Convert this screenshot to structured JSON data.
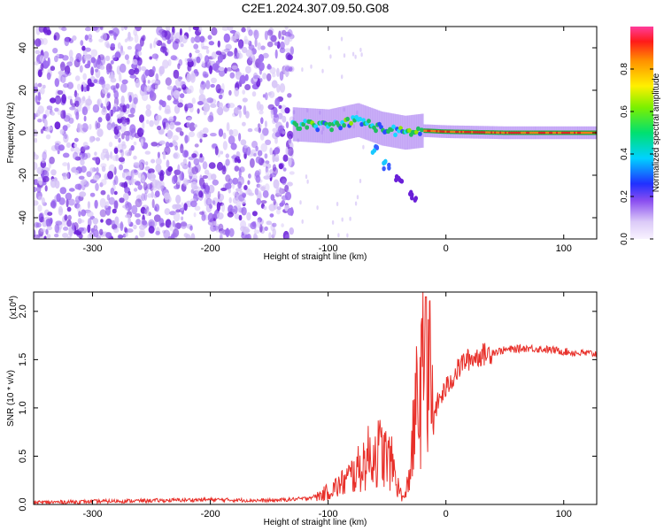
{
  "title": "C2E1.2024.307.09.50.G08",
  "colors": {
    "line": "#e8302a",
    "speckle_dark": "#6a1fd8",
    "speckle_mid": "#9d6cf0",
    "speckle_light": "#d6c4f7"
  },
  "chart_data": [
    {
      "type": "heatmap",
      "name": "spectrogram",
      "xlabel": "Height of straight line (km)",
      "ylabel": "Frequency (Hz)",
      "xlim": [
        -350,
        128
      ],
      "ylim": [
        -50,
        50
      ],
      "x_ticks": [
        -300,
        -200,
        -100,
        0,
        100
      ],
      "y_ticks": [
        40,
        20,
        0,
        -20,
        -40
      ],
      "noise_region_x": [
        -350,
        -130
      ],
      "signal_track": [
        {
          "x": -130,
          "y": 4
        },
        {
          "x": -100,
          "y": 3
        },
        {
          "x": -75,
          "y": 6
        },
        {
          "x": -55,
          "y": 2
        },
        {
          "x": -35,
          "y": 0
        },
        {
          "x": -20,
          "y": 1
        },
        {
          "x": 0,
          "y": 0.5
        },
        {
          "x": 50,
          "y": 0
        },
        {
          "x": 128,
          "y": 0
        }
      ],
      "secondary_branch": [
        {
          "x": -60,
          "y": -8
        },
        {
          "x": -50,
          "y": -15
        },
        {
          "x": -40,
          "y": -22
        },
        {
          "x": -28,
          "y": -30
        }
      ],
      "colorbar": {
        "label": "Normalized spectral amplitude",
        "ticks": [
          0.0,
          0.2,
          0.4,
          0.6,
          0.8
        ],
        "range": [
          0,
          1
        ]
      }
    },
    {
      "type": "line",
      "name": "snr",
      "xlabel": "Height of straight line (km)",
      "ylabel": "SNR (10 * v/v)",
      "yscale_label": "(x10",
      "yscale_exp": "4",
      "yscale_close": ")",
      "xlim": [
        -350,
        128
      ],
      "ylim": [
        0,
        2.2
      ],
      "x_ticks": [
        -300,
        -200,
        -100,
        0,
        100
      ],
      "y_ticks": [
        0.0,
        0.5,
        1.0,
        1.5,
        2.0
      ],
      "series": [
        {
          "color": "#e8302a",
          "points": [
            [
              -350,
              0.02
            ],
            [
              -300,
              0.03
            ],
            [
              -250,
              0.04
            ],
            [
              -200,
              0.05
            ],
            [
              -150,
              0.04
            ],
            [
              -120,
              0.06
            ],
            [
              -105,
              0.1
            ],
            [
              -90,
              0.2
            ],
            [
              -75,
              0.35
            ],
            [
              -65,
              0.5
            ],
            [
              -55,
              0.55
            ],
            [
              -45,
              0.4
            ],
            [
              -40,
              0.15
            ],
            [
              -35,
              0.05
            ],
            [
              -30,
              0.4
            ],
            [
              -25,
              1.0
            ],
            [
              -20,
              1.2
            ],
            [
              -17,
              2.15
            ],
            [
              -12,
              0.9
            ],
            [
              -5,
              1.1
            ],
            [
              0,
              1.2
            ],
            [
              5,
              1.3
            ],
            [
              15,
              1.48
            ],
            [
              30,
              1.55
            ],
            [
              50,
              1.6
            ],
            [
              70,
              1.62
            ],
            [
              90,
              1.6
            ],
            [
              110,
              1.57
            ],
            [
              128,
              1.56
            ]
          ]
        }
      ]
    }
  ]
}
